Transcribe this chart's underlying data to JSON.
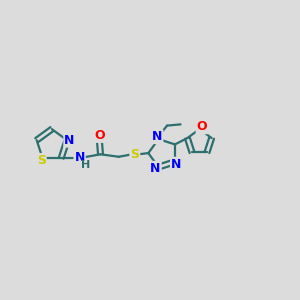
{
  "bg_color": "#dcdcdc",
  "bond_color": "#2d6e6e",
  "N_color": "#0000ff",
  "O_color": "#ff0000",
  "S_color": "#cccc00",
  "line_width": 1.6,
  "font_size": 9,
  "fig_size": [
    3.0,
    3.0
  ],
  "dpi": 100,
  "xlim": [
    0,
    12
  ],
  "ylim": [
    0,
    10
  ]
}
